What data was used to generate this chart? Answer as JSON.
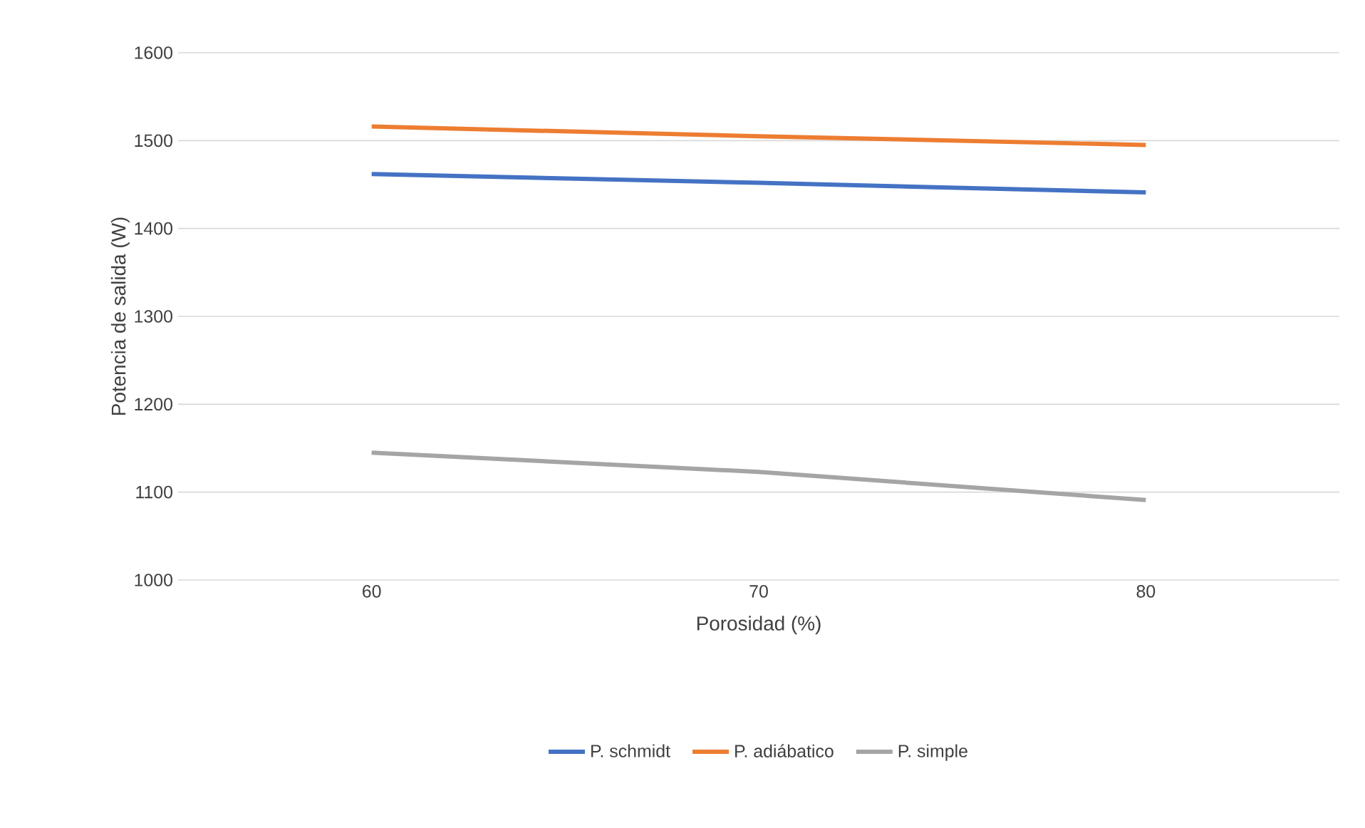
{
  "chart_data": {
    "type": "line",
    "xlabel": "Porosidad (%)",
    "ylabel": "Potencia de salida (W)",
    "categories": [
      "60",
      "70",
      "80"
    ],
    "series": [
      {
        "name": "P. schmidt",
        "color": "#4472c4",
        "values": [
          1462,
          1452,
          1441
        ]
      },
      {
        "name": "P. adiábatico",
        "color": "#ed7d31",
        "values": [
          1516,
          1505,
          1495
        ]
      },
      {
        "name": "P. simple",
        "color": "#a5a5a5",
        "values": [
          1145,
          1123,
          1091
        ]
      }
    ],
    "ylim": [
      1000,
      1600
    ],
    "yticks": [
      1000,
      1100,
      1200,
      1300,
      1400,
      1500,
      1600
    ],
    "grid": "y",
    "legend": "bottom",
    "marker": "none",
    "line_style": "solid"
  }
}
